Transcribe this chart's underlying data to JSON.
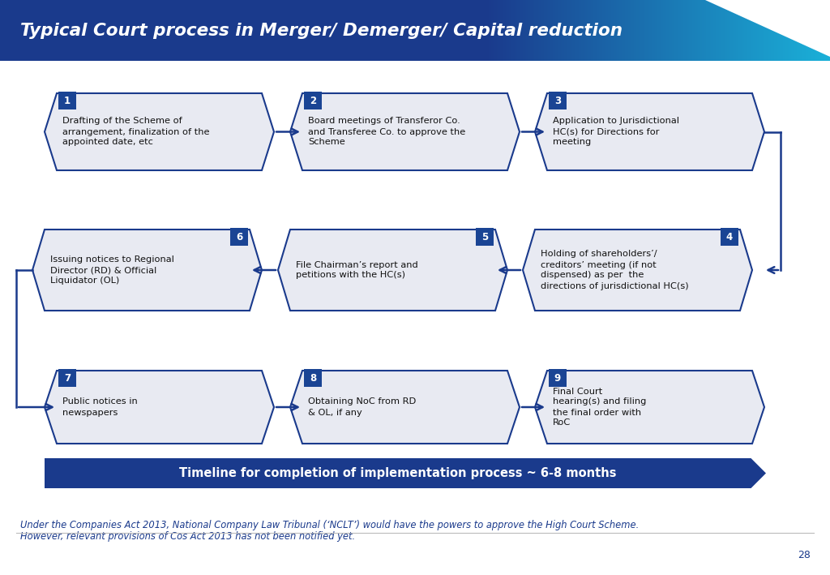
{
  "title": "Typical Court process in Merger/ Demerger/ Capital reduction",
  "title_color": "#FFFFFF",
  "header_bg_left": "#1a3a8c",
  "header_bg_right": "#1ab0d8",
  "bg_color": "#FFFFFF",
  "box_fill": "#e8eaf2",
  "box_edge": "#1a3a8c",
  "number_bg": "#1a4494",
  "number_color": "#FFFFFF",
  "arrow_color": "#1a3a8c",
  "timeline_fill": "#1a3a8c",
  "timeline_text": "Timeline for completion of implementation process ~ 6-8 months",
  "timeline_text_color": "#FFFFFF",
  "footnote_line1": "Under the Companies Act 2013, National Company Law Tribunal (‘NCLT’) would have the powers to approve the High Court Scheme.",
  "footnote_line2": "However, relevant provisions of Cos Act 2013 has not been notified yet.",
  "page_number": "28",
  "steps": [
    {
      "num": "1",
      "lines": [
        "Drafting of the Scheme of",
        "arrangement, finalization of the",
        "appointed date, etc"
      ],
      "row": 0,
      "col": 0
    },
    {
      "num": "2",
      "lines": [
        "Board meetings of Transferor Co.",
        "and Transferee Co. to approve the",
        "Scheme"
      ],
      "row": 0,
      "col": 1
    },
    {
      "num": "3",
      "lines": [
        "Application to Jurisdictional",
        "HC(s) for Directions for",
        "meeting"
      ],
      "row": 0,
      "col": 2
    },
    {
      "num": "4",
      "lines": [
        "Holding of shareholders’/",
        "creditors’ meeting (if not",
        "dispensed) as per  the",
        "directions of jurisdictional HC(s)"
      ],
      "row": 1,
      "col": 2
    },
    {
      "num": "5",
      "lines": [
        "File Chairman’s report and",
        "petitions with the HC(s)"
      ],
      "row": 1,
      "col": 1
    },
    {
      "num": "6",
      "lines": [
        "Issuing notices to Regional",
        "Director (RD) & Official",
        "Liquidator (OL)"
      ],
      "row": 1,
      "col": 0
    },
    {
      "num": "7",
      "lines": [
        "Public notices in",
        "newspapers"
      ],
      "row": 2,
      "col": 0
    },
    {
      "num": "8",
      "lines": [
        "Obtaining NoC from RD",
        "& OL, if any"
      ],
      "row": 2,
      "col": 1
    },
    {
      "num": "9",
      "lines": [
        "Final Court",
        "hearing(s) and filing",
        "the final order with",
        "RoC"
      ],
      "row": 2,
      "col": 2
    }
  ]
}
